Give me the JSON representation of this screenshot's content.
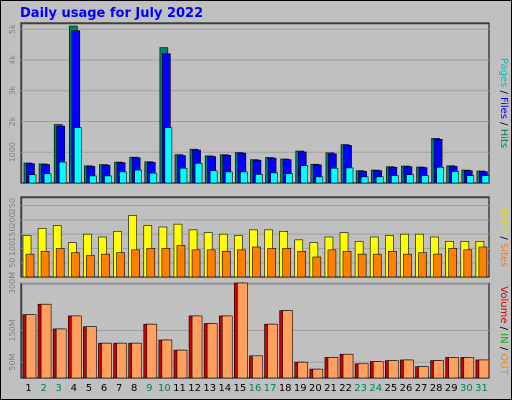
{
  "chart_data": {
    "type": "bar",
    "title": "Daily usage for July 2022",
    "days": [
      "1",
      "2",
      "3",
      "4",
      "5",
      "6",
      "7",
      "8",
      "9",
      "10",
      "11",
      "12",
      "13",
      "14",
      "15",
      "16",
      "17",
      "18",
      "19",
      "20",
      "21",
      "22",
      "23",
      "24",
      "25",
      "26",
      "27",
      "28",
      "29",
      "30",
      "31"
    ],
    "weekend_days": [
      "2",
      "3",
      "9",
      "10",
      "16",
      "17",
      "23",
      "24",
      "30",
      "31"
    ],
    "colors": {
      "hits": "#00805c",
      "files": "#0000ff",
      "pages": "#00ffff",
      "visits": "#ffff00",
      "sites": "#ff8000",
      "kbytes_in": "#cc0000",
      "kbytes_out": "#ffa060",
      "weekday_label": "#000000",
      "weekend_label": "#00805c",
      "title": "#0000ff",
      "plot_bg": "#c0c0c0"
    },
    "panels": [
      {
        "name": "Pages / Files / Hits",
        "y_ticks": [
          "1000",
          "2k",
          "3k",
          "4k",
          "5k"
        ],
        "y_tick_values": [
          1000,
          2000,
          3000,
          4000,
          5000
        ],
        "ylim": [
          0,
          5200
        ],
        "legend": [
          {
            "text": "Pages",
            "color": "#00c0c0"
          },
          {
            "text": " / ",
            "color": "#000000"
          },
          {
            "text": "Files",
            "color": "#0000ff"
          },
          {
            "text": " / ",
            "color": "#000000"
          },
          {
            "text": "Hits",
            "color": "#00805c"
          }
        ],
        "series": [
          {
            "name": "Hits",
            "color": "#00805c",
            "values": [
              650,
              620,
              1900,
              5100,
              560,
              600,
              680,
              840,
              690,
              4400,
              920,
              1100,
              880,
              920,
              990,
              760,
              830,
              780,
              1040,
              610,
              980,
              1250,
              400,
              420,
              530,
              550,
              520,
              1450,
              560,
              420,
              390
            ]
          },
          {
            "name": "Files",
            "color": "#0000ff",
            "values": [
              630,
              600,
              1850,
              4950,
              540,
              580,
              660,
              820,
              670,
              4200,
              890,
              1070,
              860,
              900,
              970,
              740,
              810,
              760,
              1010,
              590,
              950,
              1220,
              380,
              400,
              510,
              530,
              500,
              1420,
              540,
              400,
              370
            ]
          },
          {
            "name": "Pages",
            "color": "#00ffff",
            "values": [
              270,
              300,
              680,
              1800,
              230,
              230,
              360,
              420,
              320,
              1800,
              480,
              640,
              400,
              360,
              360,
              280,
              330,
              300,
              560,
              200,
              480,
              490,
              200,
              200,
              240,
              270,
              240,
              510,
              370,
              240,
              240
            ]
          }
        ]
      },
      {
        "name": "Visits / Sites",
        "y_ticks": [
          "50",
          "100",
          "150",
          "200",
          "250"
        ],
        "y_tick_values": [
          50,
          100,
          150,
          200,
          250
        ],
        "ylim": [
          0,
          280
        ],
        "legend": [
          {
            "text": "Visits",
            "color": "#e0e000"
          },
          {
            "text": " / ",
            "color": "#000000"
          },
          {
            "text": "Sites",
            "color": "#ff8000"
          }
        ],
        "series": [
          {
            "name": "Visits",
            "color": "#ffff00",
            "values": [
              145,
              170,
              180,
              120,
              150,
              140,
              160,
              215,
              180,
              175,
              185,
              165,
              155,
              150,
              145,
              165,
              165,
              160,
              130,
              120,
              140,
              155,
              125,
              140,
              145,
              150,
              150,
              140,
              125,
              125,
              125
            ]
          },
          {
            "name": "Sites",
            "color": "#ff8000",
            "values": [
              80,
              90,
              100,
              85,
              75,
              80,
              85,
              95,
              100,
              100,
              110,
              95,
              95,
              90,
              95,
              105,
              100,
              100,
              90,
              70,
              95,
              90,
              80,
              80,
              90,
              80,
              85,
              80,
              100,
              95,
              105
            ]
          }
        ]
      },
      {
        "name": "Volume / IN / OUT",
        "y_ticks": [
          "50M",
          "150M",
          "300M"
        ],
        "y_tick_values": [
          50,
          150,
          300
        ],
        "ylim": [
          0,
          300
        ],
        "legend": [
          {
            "text": "Volume",
            "color": "#cc0000"
          },
          {
            "text": " / ",
            "color": "#000000"
          },
          {
            "text": "IN",
            "color": "#00c000"
          },
          {
            "text": " / ",
            "color": "#000000"
          },
          {
            "text": "OUT",
            "color": "#ff8000"
          }
        ],
        "series": [
          {
            "name": "Volume",
            "color": "#cc0000",
            "values": [
              200,
              233,
              155,
              196,
              162,
              110,
              110,
              110,
              170,
              120,
              88,
              196,
              172,
              196,
              300,
              70,
              170,
              213,
              50,
              28,
              65,
              75,
              45,
              52,
              55,
              57,
              36,
              55,
              65,
              65,
              57
            ]
          },
          {
            "name": "OUT",
            "color": "#ffa060",
            "values": [
              200,
              233,
              155,
              196,
              162,
              110,
              110,
              110,
              170,
              120,
              88,
              196,
              172,
              196,
              300,
              70,
              170,
              213,
              50,
              28,
              65,
              75,
              45,
              52,
              55,
              57,
              36,
              55,
              65,
              65,
              57
            ]
          }
        ]
      }
    ]
  }
}
